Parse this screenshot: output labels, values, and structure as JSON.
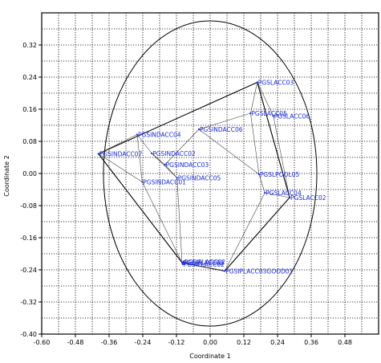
{
  "chart_data": {
    "type": "scatter",
    "title": "",
    "xlabel": "Coordinate 1",
    "ylabel": "Coordinate 2",
    "xlim": [
      -0.6,
      0.6
    ],
    "ylim": [
      -0.4,
      0.4
    ],
    "x_ticks": [
      "-0.60",
      "-0.48",
      "-0.36",
      "-0.24",
      "-0.12",
      "0.00",
      "0.12",
      "0.24",
      "0.36",
      "0.48"
    ],
    "y_ticks": [
      "0.32",
      "0.24",
      "0.16",
      "0.08",
      "0.00",
      "-0.08",
      "-0.16",
      "-0.24",
      "-0.32",
      "-0.40"
    ],
    "x_tick_values": [
      -0.6,
      -0.48,
      -0.36,
      -0.24,
      -0.12,
      0.0,
      0.12,
      0.24,
      0.36,
      0.48
    ],
    "y_tick_values": [
      0.32,
      0.24,
      0.16,
      0.08,
      0.0,
      -0.08,
      -0.16,
      -0.24,
      -0.32,
      -0.4
    ],
    "grid": true,
    "colors": {
      "points": "#1a2bd6",
      "lines": "#000000",
      "grid": "#000000"
    },
    "circle": {
      "cx": 0.0,
      "cy": 0.0,
      "r": 0.38
    },
    "points": [
      {
        "label": "PGSINDACC07",
        "x": -0.398,
        "y": 0.049
      },
      {
        "label": "PGSINDACC04",
        "x": -0.26,
        "y": 0.097
      },
      {
        "label": "PGSINDACC02",
        "x": -0.208,
        "y": 0.05
      },
      {
        "label": "PGSINDACC03",
        "x": -0.161,
        "y": 0.022
      },
      {
        "label": "PGSINDACC05",
        "x": -0.118,
        "y": -0.011
      },
      {
        "label": "PGSINDACC06",
        "x": -0.04,
        "y": 0.11
      },
      {
        "label": "PGSINDACC01",
        "x": -0.242,
        "y": -0.021
      },
      {
        "label": "PGSLACC03",
        "x": 0.168,
        "y": 0.227
      },
      {
        "label": "PGSLACC05",
        "x": 0.144,
        "y": 0.15
      },
      {
        "label": "PGSLACC06",
        "x": 0.225,
        "y": 0.143
      },
      {
        "label": "PGSLPOOL05",
        "x": 0.174,
        "y": -0.002
      },
      {
        "label": "PGSLACC04",
        "x": 0.195,
        "y": -0.048
      },
      {
        "label": "PGSLACC02",
        "x": 0.283,
        "y": -0.06
      },
      {
        "label": "PGSIPLACC02",
        "x": -0.1,
        "y": -0.222
      },
      {
        "label": "PGSIPLACC02",
        "x": -0.098,
        "y": -0.226
      },
      {
        "label": "PGSIPLACC02",
        "x": -0.095,
        "y": -0.22
      },
      {
        "label": "PGSIPLACC03GOOD01",
        "x": 0.052,
        "y": -0.243
      }
    ],
    "hull": [
      [
        -0.398,
        0.049
      ],
      [
        0.168,
        0.227
      ],
      [
        0.283,
        -0.06
      ],
      [
        0.052,
        -0.243
      ],
      [
        -0.1,
        -0.222
      ],
      [
        -0.398,
        0.049
      ]
    ],
    "links": [
      [
        [
          -0.398,
          0.049
        ],
        [
          -0.26,
          0.097
        ]
      ],
      [
        [
          -0.398,
          0.049
        ],
        [
          -0.242,
          -0.021
        ]
      ],
      [
        [
          -0.26,
          0.097
        ],
        [
          -0.208,
          0.05
        ]
      ],
      [
        [
          -0.26,
          0.097
        ],
        [
          -0.242,
          -0.021
        ]
      ],
      [
        [
          -0.208,
          0.05
        ],
        [
          -0.161,
          0.022
        ]
      ],
      [
        [
          -0.161,
          0.022
        ],
        [
          -0.118,
          -0.011
        ]
      ],
      [
        [
          -0.161,
          0.022
        ],
        [
          -0.04,
          0.11
        ]
      ],
      [
        [
          -0.208,
          0.05
        ],
        [
          -0.118,
          -0.011
        ]
      ],
      [
        [
          -0.04,
          0.11
        ],
        [
          0.144,
          0.15
        ]
      ],
      [
        [
          -0.04,
          0.11
        ],
        [
          0.174,
          -0.002
        ]
      ],
      [
        [
          -0.118,
          -0.011
        ],
        [
          -0.1,
          -0.222
        ]
      ],
      [
        [
          -0.242,
          -0.021
        ],
        [
          -0.1,
          -0.222
        ]
      ],
      [
        [
          0.168,
          0.227
        ],
        [
          0.144,
          0.15
        ]
      ],
      [
        [
          0.168,
          0.227
        ],
        [
          0.225,
          0.143
        ]
      ],
      [
        [
          0.144,
          0.15
        ],
        [
          0.174,
          -0.002
        ]
      ],
      [
        [
          0.174,
          -0.002
        ],
        [
          0.195,
          -0.048
        ]
      ],
      [
        [
          0.195,
          -0.048
        ],
        [
          0.283,
          -0.06
        ]
      ],
      [
        [
          0.225,
          0.143
        ],
        [
          0.283,
          -0.06
        ]
      ],
      [
        [
          0.195,
          -0.048
        ],
        [
          0.052,
          -0.243
        ]
      ],
      [
        [
          -0.1,
          -0.222
        ],
        [
          0.052,
          -0.243
        ]
      ]
    ]
  }
}
